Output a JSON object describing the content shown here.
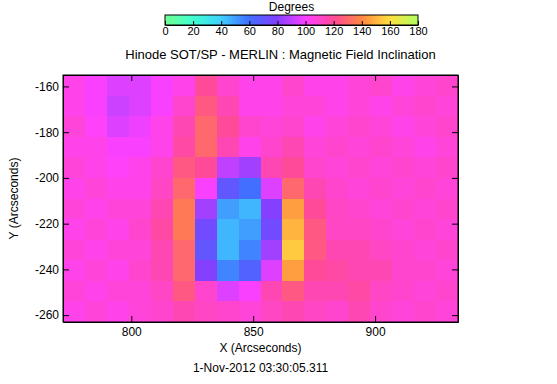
{
  "chart_data": {
    "type": "heatmap",
    "title": "Hinode SOT/SP - MERLIN : Magnetic Field Inclination",
    "xlabel": "X (Arcseconds)",
    "ylabel": "Y (Arcseconds)",
    "annotation": "1-Nov-2012 03:30:05.311",
    "colorbar_label": "Degrees",
    "x_bins": [
      772,
      781,
      790,
      799,
      808,
      817,
      826,
      835,
      844,
      853,
      862,
      871,
      880,
      889,
      898,
      907,
      916,
      925,
      934
    ],
    "y_bins": [
      -155,
      -164,
      -173,
      -182,
      -191,
      -200,
      -209,
      -218,
      -227,
      -236,
      -245,
      -254,
      -263
    ],
    "cells": [
      [
        105,
        100,
        95,
        95,
        100,
        105,
        120,
        110,
        105,
        105,
        110,
        105,
        105,
        108,
        110,
        105,
        108,
        110
      ],
      [
        105,
        100,
        92,
        95,
        100,
        110,
        125,
        115,
        105,
        105,
        108,
        108,
        105,
        108,
        105,
        108,
        110,
        108
      ],
      [
        108,
        102,
        95,
        98,
        105,
        115,
        130,
        120,
        110,
        108,
        110,
        105,
        108,
        110,
        108,
        105,
        108,
        110
      ],
      [
        105,
        105,
        100,
        100,
        105,
        118,
        130,
        115,
        105,
        110,
        115,
        108,
        110,
        108,
        110,
        108,
        105,
        108
      ],
      [
        108,
        105,
        102,
        105,
        110,
        125,
        120,
        90,
        85,
        115,
        120,
        110,
        108,
        110,
        108,
        110,
        108,
        110
      ],
      [
        105,
        108,
        105,
        105,
        112,
        130,
        100,
        70,
        60,
        95,
        130,
        115,
        110,
        108,
        110,
        108,
        110,
        108
      ],
      [
        108,
        105,
        108,
        108,
        115,
        135,
        85,
        50,
        45,
        80,
        145,
        120,
        112,
        110,
        108,
        110,
        108,
        110
      ],
      [
        105,
        108,
        105,
        110,
        118,
        135,
        75,
        45,
        50,
        75,
        150,
        125,
        112,
        112,
        110,
        108,
        110,
        108
      ],
      [
        108,
        105,
        108,
        108,
        115,
        130,
        70,
        45,
        55,
        85,
        155,
        125,
        115,
        115,
        112,
        110,
        108,
        110
      ],
      [
        105,
        108,
        105,
        110,
        115,
        130,
        80,
        55,
        65,
        95,
        145,
        120,
        118,
        115,
        115,
        110,
        110,
        108
      ],
      [
        108,
        105,
        108,
        108,
        112,
        125,
        110,
        95,
        100,
        115,
        125,
        115,
        115,
        118,
        112,
        110,
        108,
        110
      ],
      [
        105,
        108,
        105,
        108,
        110,
        115,
        112,
        110,
        108,
        112,
        115,
        112,
        110,
        115,
        110,
        108,
        110,
        108
      ]
    ],
    "xlim": [
      772,
      934
    ],
    "ylim": [
      -263,
      -155
    ],
    "xticks": [
      800,
      850,
      900
    ],
    "yticks": [
      -260,
      -240,
      -220,
      -200,
      -180,
      -160
    ],
    "zlim": [
      0,
      180
    ],
    "zticks": [
      0,
      20,
      40,
      60,
      80,
      100,
      120,
      140,
      160,
      180
    ]
  }
}
